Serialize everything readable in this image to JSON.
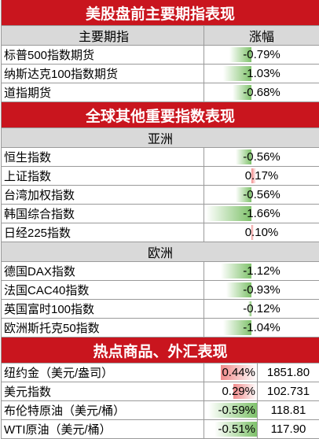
{
  "colors": {
    "banner": "#c9151e",
    "header_bg": "#d9d9d9",
    "negative_bar": "#7fc26b",
    "positive_bar": "#f08a8a"
  },
  "us_section": {
    "title": "美股盘前主要期指表现",
    "col_name": "主要期指",
    "col_change": "涨幅",
    "rows": [
      {
        "name": "标普500指数期货",
        "change": "-0.79%",
        "pct": -0.79
      },
      {
        "name": "纳斯达克100指数期货",
        "change": "-1.03%",
        "pct": -1.03
      },
      {
        "name": "道指期货",
        "change": "-0.68%",
        "pct": -0.68
      }
    ]
  },
  "global_section": {
    "title": "全球其他重要指数表现",
    "asia_label": "亚洲",
    "asia_rows": [
      {
        "name": "恒生指数",
        "change": "-0.56%",
        "pct": -0.56
      },
      {
        "name": "上证指数",
        "change": "0.17%",
        "pct": 0.17
      },
      {
        "name": "台湾加权指数",
        "change": "-0.56%",
        "pct": -0.56
      },
      {
        "name": "韩国综合指数",
        "change": "-1.66%",
        "pct": -1.66
      },
      {
        "name": "日经225指数",
        "change": "0.10%",
        "pct": 0.1
      }
    ],
    "europe_label": "欧洲",
    "europe_rows": [
      {
        "name": "德国DAX指数",
        "change": "-1.12%",
        "pct": -1.12
      },
      {
        "name": "法国CAC40指数",
        "change": "-0.93%",
        "pct": -0.93
      },
      {
        "name": "英国富时100指数",
        "change": "-0.12%",
        "pct": -0.12
      },
      {
        "name": "欧洲斯托克50指数",
        "change": "-1.04%",
        "pct": -1.04
      }
    ]
  },
  "commodity_section": {
    "title": "热点商品、外汇表现",
    "rows": [
      {
        "name": "纽约金（美元/盎司）",
        "change": "0.44%",
        "pct": 0.44,
        "price": "1851.80"
      },
      {
        "name": "美元指数",
        "change": "0.29%",
        "pct": 0.29,
        "price": "102.731"
      },
      {
        "name": "布伦特原油（美元/桶）",
        "change": "-0.59%",
        "pct": -0.59,
        "price": "118.81"
      },
      {
        "name": "WTI原油（美元/桶）",
        "change": "-0.51%",
        "pct": -0.51,
        "price": "117.90"
      }
    ]
  }
}
